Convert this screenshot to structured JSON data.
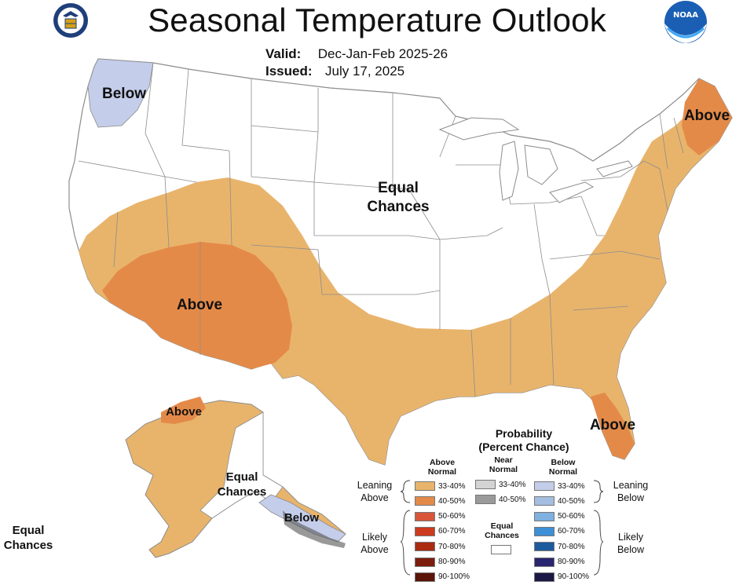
{
  "header": {
    "title": "Seasonal Temperature Outlook",
    "valid_label": "Valid:",
    "valid_value": "Dec-Jan-Feb 2025-26",
    "issued_label": "Issued:",
    "issued_value": "July 17, 2025"
  },
  "logos": {
    "left": {
      "name": "doc-seal",
      "color": "#1f3f7a"
    },
    "right": {
      "name": "noaa-logo",
      "text": "NOAA",
      "color": "#1a5fb4"
    }
  },
  "map_labels": {
    "nw_below": "Below",
    "ne_above": "Above",
    "central_equal_1": "Equal",
    "central_equal_2": "Chances",
    "sw_above": "Above",
    "fl_above": "Above",
    "ak_above": "Above",
    "ak_equal_1": "Equal",
    "ak_equal_2": "Chances",
    "ak_below": "Below",
    "hi_equal_1": "Equal",
    "hi_equal_2": "Chances"
  },
  "colors": {
    "above_33_40": "#e8b46c",
    "above_40_50": "#e48a48",
    "below_33_40": "#c4cde9",
    "land": "#ffffff",
    "border": "#8c8c8c"
  },
  "legend": {
    "title_1": "Probability",
    "title_2": "(Percent Chance)",
    "above_head_1": "Above",
    "above_head_2": "Normal",
    "near_head_1": "Near",
    "near_head_2": "Normal",
    "below_head_1": "Below",
    "below_head_2": "Normal",
    "above": [
      {
        "range": "33-40%",
        "color": "#e8b46c"
      },
      {
        "range": "40-50%",
        "color": "#e48a48"
      },
      {
        "range": "50-60%",
        "color": "#d9553a"
      },
      {
        "range": "60-70%",
        "color": "#cc3a1f"
      },
      {
        "range": "70-80%",
        "color": "#aa2a12"
      },
      {
        "range": "80-90%",
        "color": "#7c1d0d"
      },
      {
        "range": "90-100%",
        "color": "#5a1408"
      }
    ],
    "near": [
      {
        "range": "33-40%",
        "color": "#d4d4d4"
      },
      {
        "range": "40-50%",
        "color": "#9a9a9a"
      }
    ],
    "below": [
      {
        "range": "33-40%",
        "color": "#c4cde9"
      },
      {
        "range": "40-50%",
        "color": "#a4bde0"
      },
      {
        "range": "50-60%",
        "color": "#7fb0e0"
      },
      {
        "range": "60-70%",
        "color": "#3d8fd6"
      },
      {
        "range": "70-80%",
        "color": "#1c5a9e"
      },
      {
        "range": "80-90%",
        "color": "#2a2570"
      },
      {
        "range": "90-100%",
        "color": "#1a1745"
      }
    ],
    "leaning_above_1": "Leaning",
    "leaning_above_2": "Above",
    "likely_above_1": "Likely",
    "likely_above_2": "Above",
    "leaning_below_1": "Leaning",
    "leaning_below_2": "Below",
    "likely_below_1": "Likely",
    "likely_below_2": "Below",
    "equal_1": "Equal",
    "equal_2": "Chances"
  }
}
